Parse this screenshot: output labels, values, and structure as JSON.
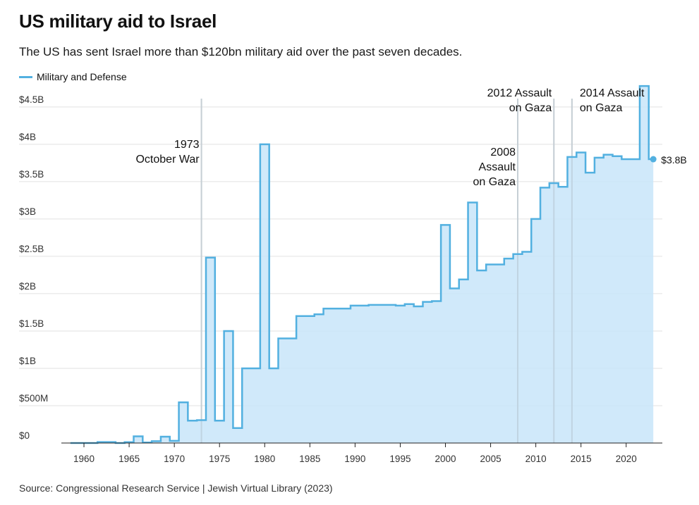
{
  "title": "US military aid to Israel",
  "subtitle": "The US has sent Israel more than $120bn military aid over the past seven decades.",
  "legend": {
    "label": "Military and Defense",
    "color": "#52b0e0"
  },
  "source": "Source: Congressional Research Service | Jewish Virtual Library (2023)",
  "colors": {
    "line": "#52b0e0",
    "fill": "#c8e5f9",
    "grid": "#e2e2e2",
    "event_line": "#d8d8d8",
    "end_dot": "#52b0e0"
  },
  "chart_data": {
    "type": "area",
    "step": true,
    "title": "US military aid to Israel",
    "xlabel": "",
    "ylabel": "",
    "xlim": [
      1957.5,
      2024
    ],
    "ylim": [
      0,
      4800000000
    ],
    "x_ticks": [
      1960,
      1965,
      1970,
      1975,
      1980,
      1985,
      1990,
      1995,
      2000,
      2005,
      2010,
      2015,
      2020
    ],
    "x_tick_labels": [
      "1960",
      "1965",
      "1970",
      "1975",
      "1980",
      "1985",
      "1990",
      "1995",
      "2000",
      "2005",
      "2010",
      "2015",
      "2020"
    ],
    "y_ticks": [
      0,
      500000000,
      1000000000,
      1500000000,
      2000000000,
      2500000000,
      3000000000,
      3500000000,
      4000000000,
      4500000000
    ],
    "y_tick_labels": [
      "$0",
      "$500M",
      "$1B",
      "$1.5B",
      "$2B",
      "$2.5B",
      "$3B",
      "$3.5B",
      "$4B",
      "$4.5B"
    ],
    "series": [
      {
        "name": "Military and Defense",
        "x": [
          1959,
          1960,
          1961,
          1962,
          1963,
          1964,
          1965,
          1966,
          1967,
          1968,
          1969,
          1970,
          1971,
          1972,
          1973,
          1974,
          1975,
          1976,
          1977,
          1978,
          1979,
          1980,
          1981,
          1982,
          1983,
          1984,
          1985,
          1986,
          1987,
          1988,
          1989,
          1990,
          1991,
          1992,
          1993,
          1994,
          1995,
          1996,
          1997,
          1998,
          1999,
          2000,
          2001,
          2002,
          2003,
          2004,
          2005,
          2006,
          2007,
          2008,
          2009,
          2010,
          2011,
          2012,
          2013,
          2014,
          2015,
          2016,
          2017,
          2018,
          2019,
          2020,
          2021,
          2022,
          2023
        ],
        "values": [
          400000,
          500000,
          500000,
          13000000,
          13000000,
          0,
          12000000,
          90000000,
          7000000,
          25000000,
          85000000,
          30000000,
          545000000,
          300000000,
          307000000,
          2482000000,
          300000000,
          1500000000,
          200000000,
          1000000000,
          1000000000,
          4000000000,
          1000000000,
          1400000000,
          1400000000,
          1700000000,
          1700000000,
          1723000000,
          1800000000,
          1800000000,
          1800000000,
          1840000000,
          1840000000,
          1850000000,
          1850000000,
          1850000000,
          1840000000,
          1860000000,
          1830000000,
          1890000000,
          1900000000,
          2920000000,
          2070000000,
          2190000000,
          3220000000,
          2310000000,
          2390000000,
          2390000000,
          2470000000,
          2530000000,
          2560000000,
          3000000000,
          3420000000,
          3480000000,
          3430000000,
          3830000000,
          3890000000,
          3620000000,
          3820000000,
          3860000000,
          3840000000,
          3800000000,
          3800000000,
          4780000000,
          3800000000
        ]
      }
    ],
    "annotations": [
      {
        "x": 1973,
        "lines": [
          "1973",
          "October War"
        ],
        "align": "end"
      },
      {
        "x": 2008,
        "lines": [
          "2008",
          "Assault",
          "on Gaza"
        ],
        "align": "end"
      },
      {
        "x": 2012,
        "lines": [
          "2012 Assault",
          "on Gaza"
        ],
        "align": "end"
      },
      {
        "x": 2014,
        "lines": [
          "2014 Assault",
          "on Gaza"
        ],
        "align": "start"
      }
    ],
    "end_label": "$3.8B"
  }
}
